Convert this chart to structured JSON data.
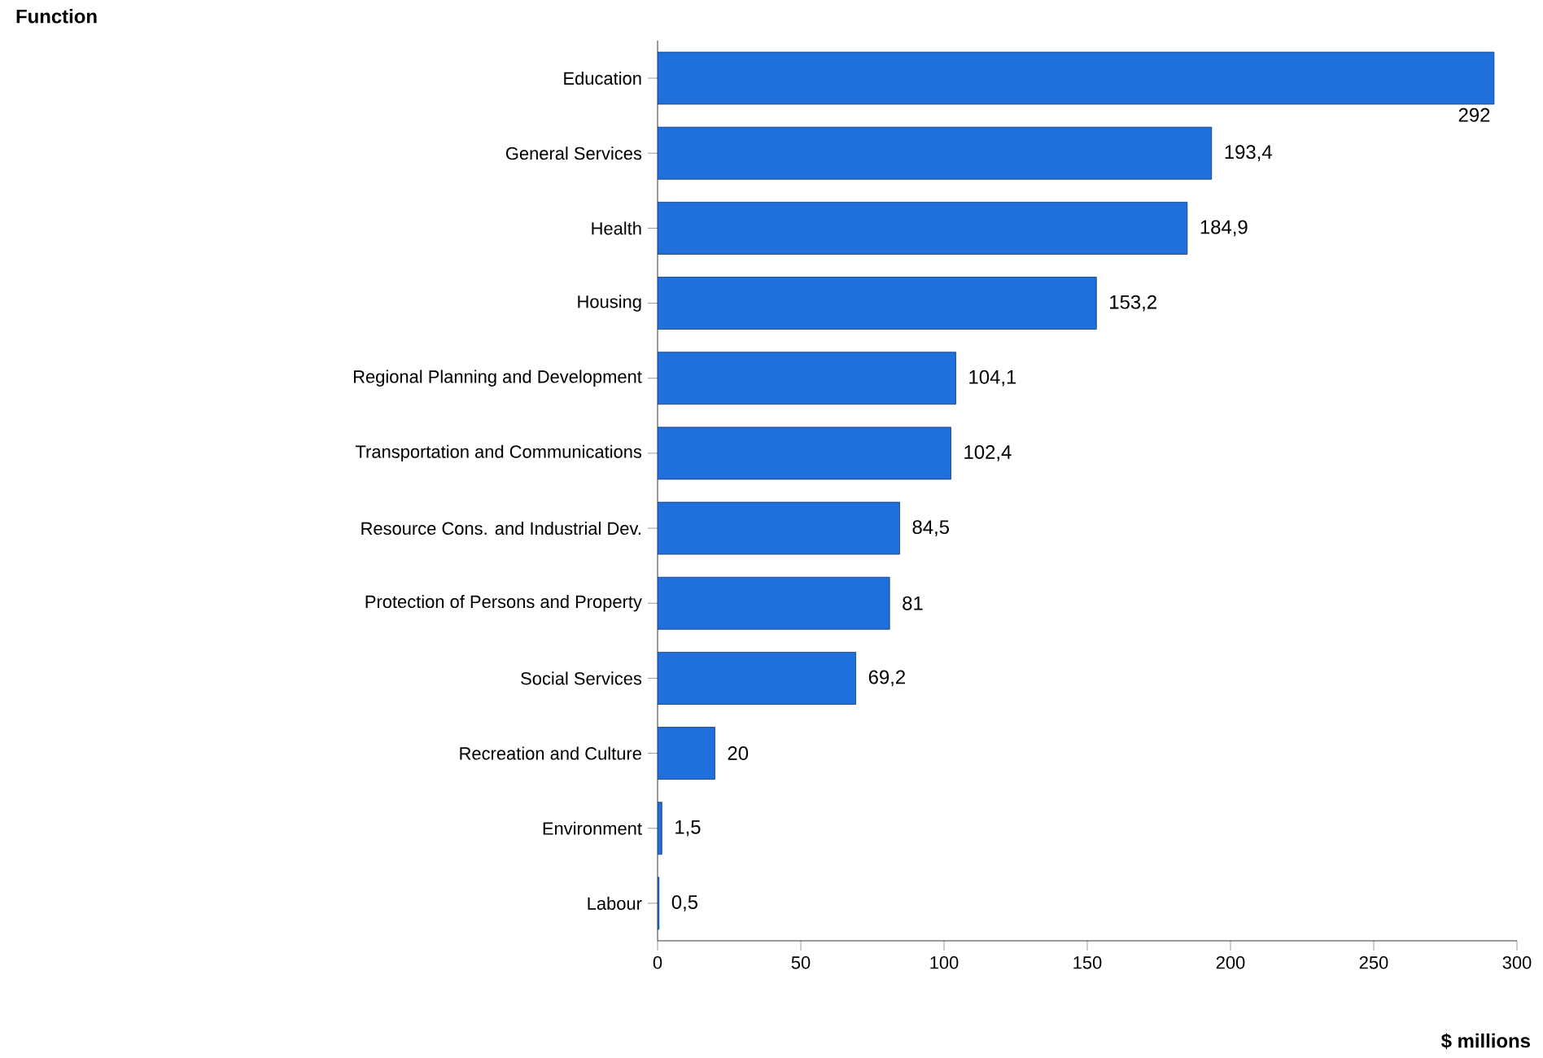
{
  "chart_data": {
    "type": "bar",
    "orientation": "horizontal",
    "xlabel": "$ millions",
    "annotations": [
      "Function"
    ],
    "categories": [
      "Education",
      "General Services",
      "Health",
      "Housing",
      "Regional Planning and Development",
      "Transportation and Communications",
      "Resource Cons. and Industrial Dev.",
      "Protection of Persons and Property",
      "Social Services",
      "Recreation and Culture",
      "Environment",
      "Labour"
    ],
    "values": [
      292,
      193.4,
      184.9,
      153.2,
      104.1,
      102.4,
      84.5,
      81,
      69.2,
      20,
      1.5,
      0.5
    ],
    "value_labels": [
      "292",
      "193,4",
      "184,9",
      "153,2",
      "104,1",
      "102,4",
      "84,5",
      "81",
      "69,2",
      "20",
      "1,5",
      "0,5"
    ],
    "color": "#1f6fdc",
    "xlim": [
      0,
      300
    ],
    "xticks": [
      0,
      50,
      100,
      150,
      200,
      250,
      300
    ],
    "grid": false
  }
}
